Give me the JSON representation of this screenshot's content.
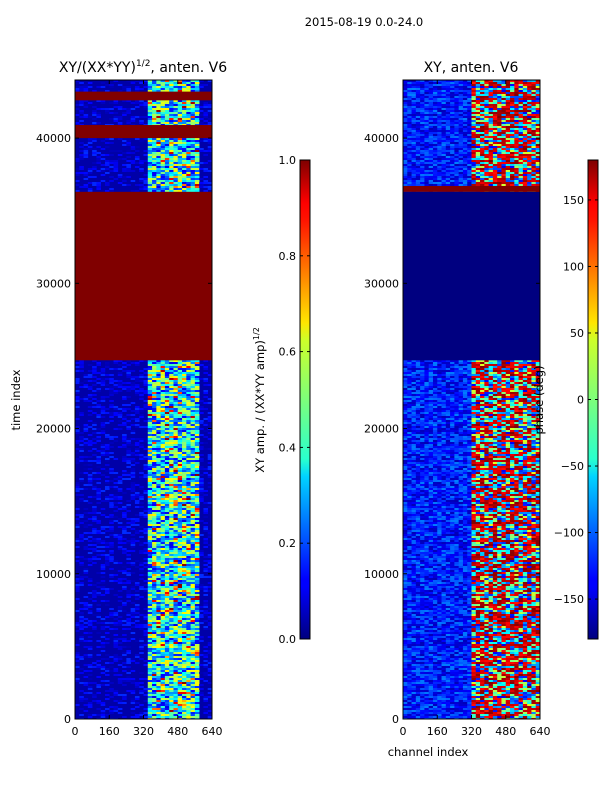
{
  "page": {
    "suptitle": "2015-08-19 0.0-24.0"
  },
  "chart_data": [
    {
      "type": "heatmap",
      "title": "XY/(XX*YY)^1/2, anten. V6",
      "title_main": "XY/(XX*YY)",
      "title_exp": "1/2",
      "title_tail": ", anten. V6",
      "xlabel": "",
      "ylabel": "time index",
      "xticks": [
        0,
        160,
        320,
        480,
        640
      ],
      "yticks": [
        0,
        10000,
        20000,
        30000,
        40000
      ],
      "xlim": [
        0,
        640
      ],
      "ylim": [
        0,
        44000
      ],
      "colorbar": {
        "label": "XY amp. / (XX*YY amp)^1/2",
        "label_main": "XY amp. / (XX*YY amp)",
        "label_exp": "1/2",
        "ticks": [
          0.0,
          0.2,
          0.4,
          0.6,
          0.8,
          1.0
        ],
        "tick_labels": [
          "0.0",
          "0.2",
          "0.4",
          "0.6",
          "0.8",
          "1.0"
        ],
        "range": [
          0.0,
          1.0
        ]
      },
      "bands": [
        {
          "y0": 24700,
          "y1": 36300,
          "value": 1.0
        },
        {
          "y0": 40000,
          "y1": 40900,
          "value": 1.0
        },
        {
          "y0": 42600,
          "y1": 43200,
          "value": 1.0
        }
      ]
    },
    {
      "type": "heatmap",
      "title": "XY, anten. V6",
      "xlabel": "channel index",
      "ylabel": "",
      "xticks": [
        0,
        160,
        320,
        480,
        640
      ],
      "yticks": [
        0,
        10000,
        20000,
        30000,
        40000
      ],
      "xlim": [
        0,
        640
      ],
      "ylim": [
        0,
        44000
      ],
      "colorbar": {
        "label": "phase (deg)",
        "ticks": [
          -150,
          -100,
          -50,
          0,
          50,
          100,
          150
        ],
        "tick_labels": [
          "−150",
          "−100",
          "−50",
          "0",
          "50",
          "100",
          "150"
        ],
        "range": [
          -180,
          180
        ]
      },
      "bands": [
        {
          "y0": 24700,
          "y1": 36300,
          "value": -180
        },
        {
          "y0": 36300,
          "y1": 36700,
          "value": 180
        }
      ]
    }
  ]
}
